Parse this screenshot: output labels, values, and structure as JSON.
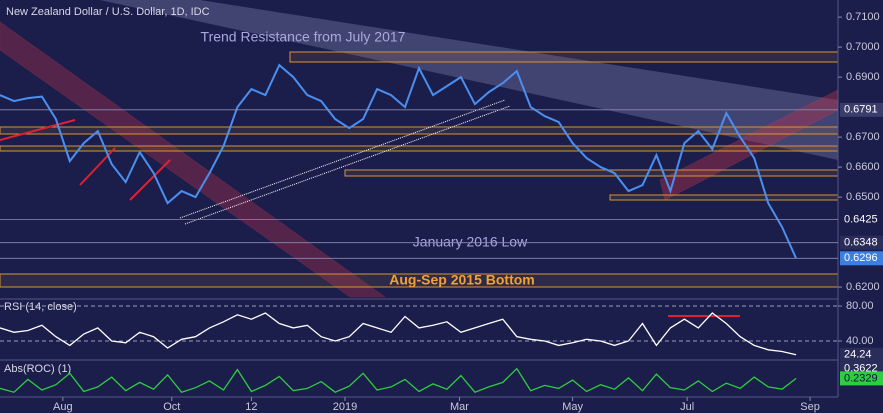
{
  "chart_data": [
    {
      "type": "line",
      "title": "New Zealand Dollar / U.S. Dollar, 1D, IDC",
      "annotations": [
        "Trend Resistance from July 2017",
        "January 2016 Low",
        "Aug-Sep 2015 Bottom"
      ],
      "series": [
        {
          "name": "NZD/USD",
          "color": "#4a8ff0",
          "values": [
            0.684,
            0.682,
            0.683,
            0.6835,
            0.676,
            0.662,
            0.668,
            0.672,
            0.661,
            0.655,
            0.665,
            0.658,
            0.648,
            0.652,
            0.65,
            0.658,
            0.667,
            0.68,
            0.686,
            0.684,
            0.694,
            0.69,
            0.684,
            0.682,
            0.676,
            0.673,
            0.676,
            0.686,
            0.684,
            0.68,
            0.693,
            0.684,
            0.687,
            0.69,
            0.681,
            0.685,
            0.688,
            0.692,
            0.68,
            0.677,
            0.675,
            0.668,
            0.663,
            0.66,
            0.658,
            0.652,
            0.654,
            0.664,
            0.652,
            0.668,
            0.672,
            0.666,
            0.678,
            0.67,
            0.663,
            0.648,
            0.64,
            0.6296
          ]
        }
      ],
      "xlim": [
        0,
        60
      ],
      "xticks": [
        {
          "value": 4.5,
          "label": "Aug"
        },
        {
          "value": 12.3,
          "label": "Oct"
        },
        {
          "value": 18,
          "label": "12"
        },
        {
          "value": 24.7,
          "label": "2019"
        },
        {
          "value": 32.9,
          "label": "Mar"
        },
        {
          "value": 41,
          "label": "May"
        },
        {
          "value": 49.2,
          "label": "Jul"
        },
        {
          "value": 58,
          "label": "Sep"
        }
      ],
      "ylim": [
        0.6167,
        0.7157
      ],
      "yticks": [
        {
          "value": 0.71,
          "label": "0.7100"
        },
        {
          "value": 0.7,
          "label": "0.7000"
        },
        {
          "value": 0.69,
          "label": "0.6900"
        },
        {
          "value": 0.67,
          "label": "0.6700"
        },
        {
          "value": 0.66,
          "label": "0.6600"
        },
        {
          "value": 0.65,
          "label": "0.6500"
        },
        {
          "value": 0.62,
          "label": "0.6200"
        }
      ],
      "levels": [
        {
          "value": 0.6791,
          "label": "0.6791"
        },
        {
          "value": 0.6425,
          "label": "0.6425"
        },
        {
          "value": 0.6348,
          "label": "0.6348"
        },
        {
          "value": 0.6296,
          "label": "0.6296"
        }
      ]
    },
    {
      "type": "line",
      "title": "RSI (14, close)",
      "series": [
        {
          "name": "RSI",
          "color": "#ffffff",
          "values": [
            55,
            50,
            52,
            58,
            45,
            35,
            48,
            55,
            40,
            38,
            50,
            45,
            32,
            42,
            45,
            55,
            62,
            70,
            65,
            72,
            60,
            55,
            58,
            45,
            40,
            45,
            60,
            55,
            50,
            68,
            55,
            58,
            62,
            50,
            55,
            60,
            65,
            45,
            42,
            40,
            35,
            38,
            42,
            40,
            35,
            40,
            60,
            35,
            55,
            65,
            55,
            72,
            60,
            45,
            35,
            30,
            28,
            24.24
          ]
        }
      ],
      "ylim": [
        20.6,
        86.9
      ],
      "yticks": [
        {
          "value": 80,
          "label": "80.00"
        },
        {
          "value": 40,
          "label": "40.00"
        }
      ],
      "levels": [
        {
          "value": 24.24,
          "label": "24.24"
        }
      ]
    },
    {
      "type": "line",
      "title": "Abs(ROC) (1)",
      "series": [
        {
          "name": "Abs(ROC)",
          "color": "#2ecc40",
          "values": [
            0.1,
            0.05,
            0.22,
            0.08,
            0.15,
            0.3,
            0.06,
            0.12,
            0.25,
            0.07,
            0.18,
            0.09,
            0.28,
            0.05,
            0.11,
            0.2,
            0.08,
            0.35,
            0.06,
            0.14,
            0.26,
            0.07,
            0.1,
            0.19,
            0.05,
            0.13,
            0.3,
            0.08,
            0.12,
            0.22,
            0.06,
            0.16,
            0.09,
            0.27,
            0.05,
            0.12,
            0.18,
            0.3622,
            0.07,
            0.14,
            0.1,
            0.21,
            0.06,
            0.15,
            0.09,
            0.24,
            0.07,
            0.29,
            0.11,
            0.08,
            0.2,
            0.06,
            0.17,
            0.1,
            0.25,
            0.12,
            0.09,
            0.2329
          ]
        }
      ],
      "ylim": [
        0,
        0.45
      ],
      "levels": [
        {
          "value": 0.3622,
          "label": "0.3622"
        },
        {
          "value": 0.2329,
          "label": "0.2329"
        }
      ]
    }
  ]
}
